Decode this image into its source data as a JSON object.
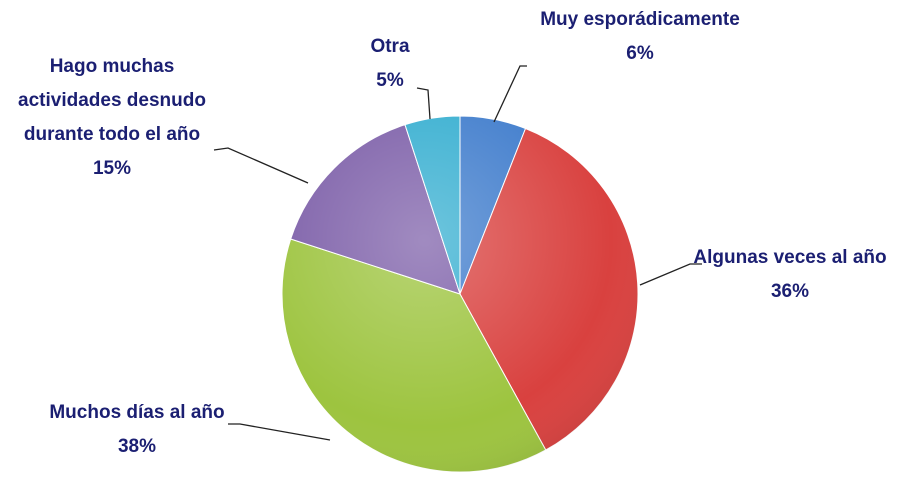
{
  "chart_data": {
    "type": "pie",
    "categories": [
      "Muy esporádicamente",
      "Algunas veces al año",
      "Muchos días al año",
      "Hago muchas actividades desnudo durante todo el año",
      "Otra"
    ],
    "values": [
      6,
      36,
      38,
      15,
      5
    ],
    "value_labels": [
      "6%",
      "36%",
      "38%",
      "15%",
      "5%"
    ],
    "colors": [
      "#3f7ccc",
      "#d9413f",
      "#9dc43f",
      "#7c5ea8",
      "#35aed0"
    ]
  }
}
